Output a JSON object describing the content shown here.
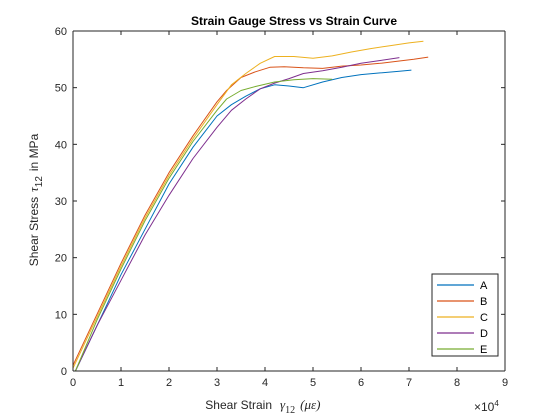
{
  "chart_data": {
    "type": "line",
    "title": "Strain Gauge Stress vs Strain Curve",
    "xlabel": {
      "text": "Shear Strain",
      "symbol": "γ",
      "subscript": "12",
      "units": "(με)"
    },
    "ylabel": {
      "text": "Shear Stress",
      "symbol": "τ",
      "subscript": "12",
      "suffix": "in MPa"
    },
    "x_multiplier": {
      "base": "×10",
      "exponent": "4"
    },
    "xlim": [
      0,
      9
    ],
    "ylim": [
      0,
      60
    ],
    "xticks": [
      "0",
      "1",
      "2",
      "3",
      "4",
      "5",
      "6",
      "7",
      "8",
      "9"
    ],
    "yticks": [
      "0",
      "10",
      "20",
      "30",
      "40",
      "50",
      "60"
    ],
    "grid": false,
    "legend_position": "bottom-right",
    "series": [
      {
        "name": "A",
        "color": "#0072BD",
        "points": [
          [
            0.05,
            0
          ],
          [
            0.5,
            8
          ],
          [
            1,
            17
          ],
          [
            1.5,
            25
          ],
          [
            2,
            33
          ],
          [
            2.5,
            39.5
          ],
          [
            3,
            45
          ],
          [
            3.3,
            47
          ],
          [
            3.6,
            48.5
          ],
          [
            3.9,
            49.8
          ],
          [
            4.2,
            50.5
          ],
          [
            4.5,
            50.3
          ],
          [
            4.8,
            50
          ],
          [
            5.2,
            51
          ],
          [
            5.6,
            51.8
          ],
          [
            6,
            52.3
          ],
          [
            6.4,
            52.6
          ],
          [
            6.8,
            52.9
          ],
          [
            7.05,
            53.1
          ]
        ]
      },
      {
        "name": "B",
        "color": "#D95319",
        "points": [
          [
            0,
            1
          ],
          [
            0.5,
            10
          ],
          [
            1,
            19
          ],
          [
            1.5,
            27.5
          ],
          [
            2,
            35
          ],
          [
            2.5,
            41.5
          ],
          [
            3,
            47.5
          ],
          [
            3.2,
            49.5
          ],
          [
            3.5,
            51.8
          ],
          [
            3.8,
            52.8
          ],
          [
            4.1,
            53.6
          ],
          [
            4.4,
            53.7
          ],
          [
            4.8,
            53.5
          ],
          [
            5.2,
            53.4
          ],
          [
            5.6,
            53.8
          ],
          [
            6,
            54
          ],
          [
            6.4,
            54.3
          ],
          [
            6.8,
            54.7
          ],
          [
            7.1,
            55
          ],
          [
            7.4,
            55.4
          ]
        ]
      },
      {
        "name": "C",
        "color": "#EDB120",
        "points": [
          [
            0,
            0.5
          ],
          [
            0.5,
            9.5
          ],
          [
            1,
            18.5
          ],
          [
            1.5,
            27
          ],
          [
            2,
            34.5
          ],
          [
            2.5,
            41
          ],
          [
            3,
            47
          ],
          [
            3.3,
            50.5
          ],
          [
            3.6,
            52.5
          ],
          [
            3.9,
            54.3
          ],
          [
            4.2,
            55.5
          ],
          [
            4.6,
            55.5
          ],
          [
            5,
            55.2
          ],
          [
            5.4,
            55.6
          ],
          [
            5.8,
            56.3
          ],
          [
            6.2,
            56.9
          ],
          [
            6.6,
            57.4
          ],
          [
            7,
            57.9
          ],
          [
            7.3,
            58.2
          ]
        ]
      },
      {
        "name": "D",
        "color": "#7E2F8E",
        "points": [
          [
            0.05,
            0
          ],
          [
            0.5,
            8
          ],
          [
            1,
            16
          ],
          [
            1.5,
            24
          ],
          [
            2,
            31
          ],
          [
            2.5,
            37.5
          ],
          [
            3,
            43
          ],
          [
            3.3,
            46
          ],
          [
            3.6,
            48
          ],
          [
            3.9,
            49.8
          ],
          [
            4.2,
            50.8
          ],
          [
            4.5,
            51.6
          ],
          [
            4.8,
            52.5
          ],
          [
            5.2,
            53
          ],
          [
            5.6,
            53.6
          ],
          [
            6,
            54.3
          ],
          [
            6.4,
            54.8
          ],
          [
            6.8,
            55.3
          ]
        ]
      },
      {
        "name": "E",
        "color": "#77AC30",
        "points": [
          [
            0.05,
            0
          ],
          [
            0.5,
            9
          ],
          [
            1,
            18
          ],
          [
            1.5,
            26.5
          ],
          [
            2,
            34
          ],
          [
            2.5,
            40.5
          ],
          [
            3,
            46
          ],
          [
            3.2,
            48
          ],
          [
            3.5,
            49.5
          ],
          [
            3.8,
            50.2
          ],
          [
            4.2,
            51
          ],
          [
            4.6,
            51.4
          ],
          [
            5,
            51.6
          ],
          [
            5.4,
            51.5
          ]
        ]
      }
    ]
  }
}
